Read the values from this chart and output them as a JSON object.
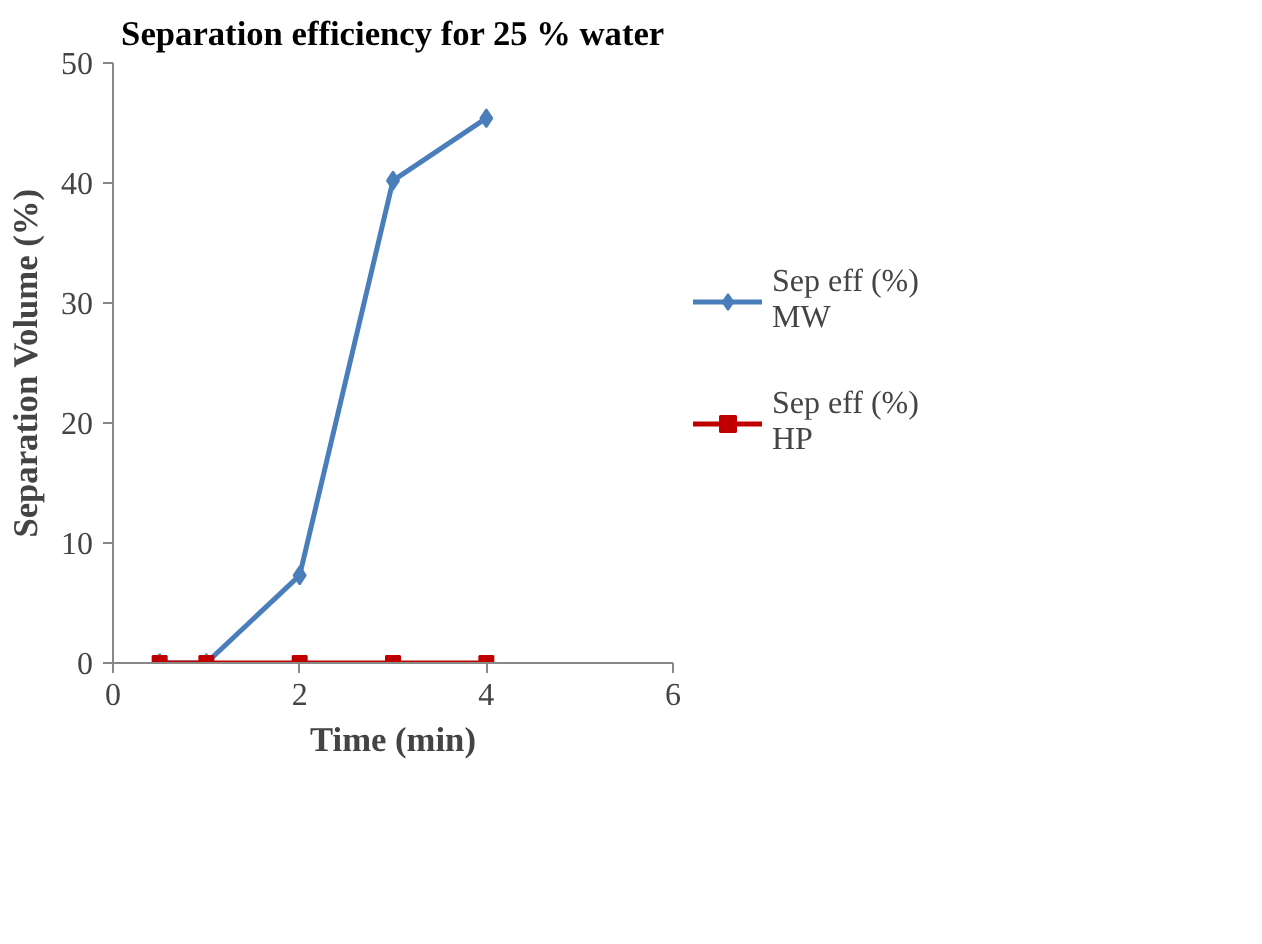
{
  "chart_data": {
    "type": "line",
    "title": "Separation efficiency for 25 % water",
    "xlabel": "Time (min)",
    "ylabel": "Separation Volume (%)",
    "x": [
      0.5,
      1,
      2,
      3,
      4
    ],
    "series": [
      {
        "name": "Sep eff (%) MW",
        "color": "#4a7ebb",
        "values": [
          0,
          0,
          7.3,
          40.2,
          45.4
        ],
        "marker": "diamond"
      },
      {
        "name": "Sep eff (%) HP",
        "color": "#c00000",
        "values": [
          0,
          0,
          0,
          0,
          0
        ],
        "marker": "square"
      }
    ],
    "xlim": [
      0,
      6
    ],
    "xticks": [
      0,
      2,
      4,
      6
    ],
    "ylim": [
      0,
      50
    ],
    "yticks": [
      0,
      10,
      20,
      30,
      40,
      50
    ],
    "grid": false,
    "legend": "right"
  }
}
